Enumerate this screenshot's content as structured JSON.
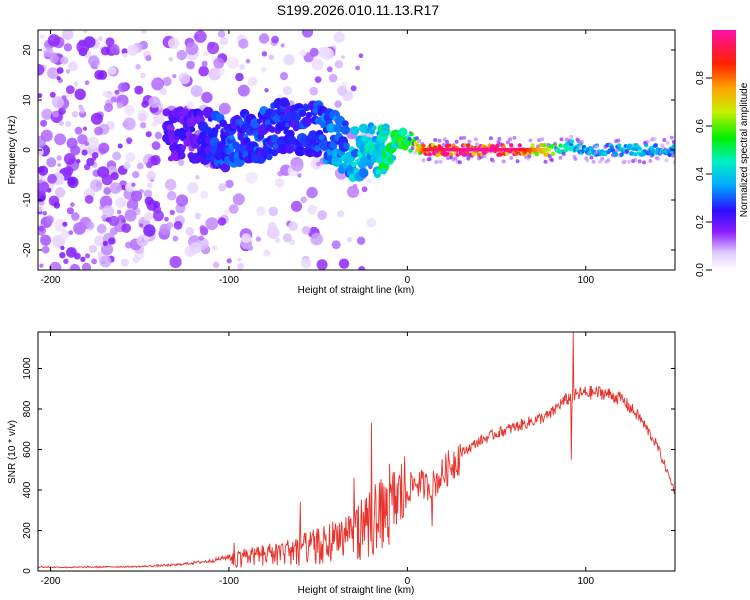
{
  "title": "S199.2026.010.11.13.R17",
  "chart_data": [
    {
      "type": "heatmap",
      "title": "S199.2026.010.11.13.R17",
      "xlabel": "Height of straight line (km)",
      "ylabel": "Frequency (Hz)",
      "xlim": [
        -207,
        150
      ],
      "ylim": [
        -24,
        24
      ],
      "xticks": [
        -200,
        -100,
        0,
        100
      ],
      "yticks": [
        -20,
        -10,
        0,
        10,
        20
      ],
      "colorbar": {
        "label": "Normalized spectral amplitude",
        "range": [
          0,
          1
        ],
        "ticks": [
          "0.0",
          "0.2",
          "0.4",
          "0.6",
          "0.8"
        ],
        "tick_values": [
          0,
          0.2,
          0.4,
          0.6,
          0.8
        ]
      },
      "ridge": {
        "x": [
          -130,
          -115,
          -100,
          -90,
          -80,
          -70,
          -60,
          -50,
          -40,
          -30,
          -20,
          -10,
          0,
          5,
          10,
          20,
          40,
          60,
          70,
          80,
          85,
          90,
          100,
          120,
          150
        ],
        "freq": [
          3,
          3,
          1,
          3,
          3,
          5,
          4,
          4,
          2,
          -1,
          0,
          0,
          2,
          0,
          0,
          0,
          0,
          0,
          0,
          0,
          0,
          1,
          0,
          0,
          0
        ],
        "amplitude": [
          0.22,
          0.25,
          0.3,
          0.3,
          0.3,
          0.28,
          0.28,
          0.3,
          0.35,
          0.4,
          0.45,
          0.5,
          0.55,
          0.7,
          0.9,
          0.95,
          1.0,
          0.95,
          0.8,
          0.65,
          0.5,
          0.45,
          0.4,
          0.4,
          0.4
        ]
      }
    },
    {
      "type": "line",
      "title": "",
      "xlabel": "Height of straight line (km)",
      "ylabel": "SNR (10 * v/v)",
      "xlim": [
        -207,
        150
      ],
      "ylim": [
        0,
        1180
      ],
      "xticks": [
        -200,
        -100,
        0,
        100
      ],
      "yticks": [
        0,
        200,
        400,
        600,
        800,
        1000
      ],
      "series": [
        {
          "name": "SNR",
          "color": "#e8332c",
          "envelope_x": [
            -207,
            -190,
            -170,
            -150,
            -130,
            -120,
            -110,
            -100,
            -95,
            -90,
            -80,
            -70,
            -60,
            -50,
            -40,
            -30,
            -20,
            -10,
            -5,
            0,
            5,
            10,
            15,
            20,
            25,
            30,
            40,
            50,
            60,
            70,
            80,
            85,
            90,
            95,
            100,
            110,
            120,
            130,
            140,
            150
          ],
          "envelope_y": [
            20,
            18,
            20,
            22,
            30,
            40,
            50,
            70,
            80,
            90,
            100,
            110,
            130,
            150,
            180,
            220,
            280,
            320,
            360,
            400,
            440,
            420,
            430,
            480,
            530,
            580,
            640,
            680,
            710,
            740,
            770,
            820,
            850,
            870,
            880,
            880,
            850,
            760,
            620,
            390
          ],
          "spikes": [
            {
              "x": -97,
              "y": 140
            },
            {
              "x": -60,
              "y": 340
            },
            {
              "x": -30,
              "y": 460
            },
            {
              "x": -20,
              "y": 730
            },
            {
              "x": -10,
              "y": 530
            },
            {
              "x": 14,
              "y": 220
            },
            {
              "x": 93,
              "y": 1180
            },
            {
              "x": 92,
              "y": 550
            }
          ]
        }
      ]
    }
  ]
}
